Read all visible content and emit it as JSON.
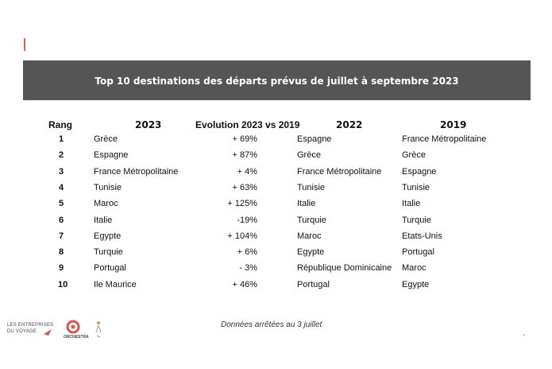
{
  "title": "Top 10 destinations des départs prévus de juillet à septembre 2023",
  "headers": {
    "rank": "Rang",
    "y2023": "2023",
    "evolution": "Evolution 2023 vs 2019",
    "y2022": "2022",
    "y2019": "2019"
  },
  "rows": [
    {
      "rank": "1",
      "d2023": "Grèce",
      "evo": "+ 69%",
      "d2022": "Espagne",
      "d2019": "France Métropolitaine"
    },
    {
      "rank": "2",
      "d2023": "Espagne",
      "evo": "+ 87%",
      "d2022": "Grèce",
      "d2019": "Grèce"
    },
    {
      "rank": "3",
      "d2023": "France Métropolitaine",
      "evo": "+ 4%",
      "d2022": "France Métropolitaine",
      "d2019": "Espagne"
    },
    {
      "rank": "4",
      "d2023": "Tunisie",
      "evo": "+ 63%",
      "d2022": "Tunisie",
      "d2019": "Tunisie"
    },
    {
      "rank": "5",
      "d2023": "Maroc",
      "evo": "+ 125%",
      "d2022": "Italie",
      "d2019": "Italie"
    },
    {
      "rank": "6",
      "d2023": "Italie",
      "evo": "-19%",
      "d2022": "Turquie",
      "d2019": "Turquie"
    },
    {
      "rank": "7",
      "d2023": "Egypte",
      "evo": "+ 104%",
      "d2022": "Maroc",
      "d2019": "Etats-Unis"
    },
    {
      "rank": "8",
      "d2023": "Turquie",
      "evo": "+ 6%",
      "d2022": "Egypte",
      "d2019": "Portugal"
    },
    {
      "rank": "9",
      "d2023": "Portugal",
      "evo": "- 3%",
      "d2022": "République Dominicaine",
      "d2019": "Maroc"
    },
    {
      "rank": "10",
      "d2023": "Ile Maurice",
      "evo": "+ 46%",
      "d2022": "Portugal",
      "d2019": "Egypte"
    }
  ],
  "footer": {
    "note": "Données arrêtées au 3 juillet",
    "logo_entreprises_line1": "LES ENTREPRISES",
    "logo_entreprises_line2": "DU VOYAGE",
    "logo_orchestra": "ORCHESTRA"
  },
  "colors": {
    "banner": "#555555",
    "accent_red": "#e0604f"
  }
}
